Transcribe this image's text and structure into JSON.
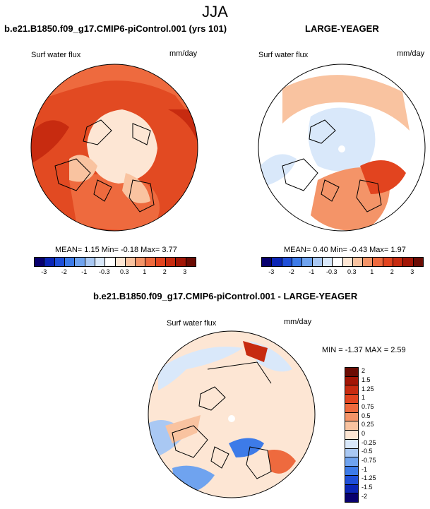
{
  "title": "JJA",
  "panels": [
    {
      "title": "b.e21.B1850.f09_g17.CMIP6-piControl.001 (yrs 101)",
      "variable": "Surf water flux",
      "units": "mm/day",
      "stats": {
        "mean_label": "MEAN=",
        "mean": "1.15",
        "min_label": "Min=",
        "min": "-0.18",
        "max_label": "Max=",
        "max": "3.77"
      }
    },
    {
      "title": "LARGE-YEAGER",
      "variable": "Surf water flux",
      "units": "mm/day",
      "stats": {
        "mean_label": "MEAN=",
        "mean": "0.40",
        "min_label": "Min=",
        "min": "-0.43",
        "max_label": "Max=",
        "max": "1.97"
      }
    },
    {
      "title": "b.e21.B1850.f09_g17.CMIP6-piControl.001 - LARGE-YEAGER",
      "variable": "Surf water flux",
      "units": "mm/day",
      "stats": {
        "min_label": "MIN =",
        "min": "-1.37",
        "max_label": "MAX =",
        "max": "2.59"
      }
    }
  ],
  "colorbar_abs": {
    "ticks": [
      "-3",
      "-2",
      "-1",
      "-0.3",
      "0.3",
      "1",
      "2",
      "3"
    ],
    "colors": [
      "#08006e",
      "#0b25b5",
      "#1f4fd8",
      "#3d7be8",
      "#6fa3ef",
      "#a9c8f3",
      "#d9e8fa",
      "#ffffff",
      "#fde6d4",
      "#f9c3a0",
      "#f49468",
      "#ee6a3e",
      "#e2441f",
      "#c72b10",
      "#a21606",
      "#6b0c04"
    ]
  },
  "colorbar_diff": {
    "ticks": [
      "2",
      "1.5",
      "1.25",
      "1",
      "0.75",
      "0.5",
      "0.25",
      "0",
      "-0.25",
      "-0.5",
      "-0.75",
      "-1",
      "-1.25",
      "-1.5",
      "-2"
    ],
    "colors": [
      "#6b0c04",
      "#a21606",
      "#c72b10",
      "#e2441f",
      "#ee6a3e",
      "#f49468",
      "#f9c3a0",
      "#fde6d4",
      "#d9e8fa",
      "#a9c8f3",
      "#6fa3ef",
      "#3d7be8",
      "#1f4fd8",
      "#0b25b5",
      "#08006e"
    ]
  },
  "chart_data": [
    {
      "type": "heatmap",
      "title": "b.e21.B1850.f09_g17.CMIP6-piControl.001 (yrs 101)",
      "variable": "Surf water flux",
      "units": "mm/day",
      "projection": "north-polar-stereographic",
      "mean": 1.15,
      "min": -0.18,
      "max": 3.77,
      "levels": [
        -3,
        -2,
        -1,
        -0.3,
        0.3,
        1,
        2,
        3
      ]
    },
    {
      "type": "heatmap",
      "title": "LARGE-YEAGER",
      "variable": "Surf water flux",
      "units": "mm/day",
      "projection": "north-polar-stereographic",
      "mean": 0.4,
      "min": -0.43,
      "max": 1.97,
      "levels": [
        -3,
        -2,
        -1,
        -0.3,
        0.3,
        1,
        2,
        3
      ]
    },
    {
      "type": "heatmap",
      "title": "b.e21.B1850.f09_g17.CMIP6-piControl.001 - LARGE-YEAGER",
      "variable": "Surf water flux",
      "units": "mm/day",
      "projection": "north-polar-stereographic",
      "min": -1.37,
      "max": 2.59,
      "levels": [
        -2,
        -1.5,
        -1.25,
        -1,
        -0.75,
        -0.5,
        -0.25,
        0,
        0.25,
        0.5,
        0.75,
        1,
        1.25,
        1.5,
        2
      ]
    }
  ]
}
